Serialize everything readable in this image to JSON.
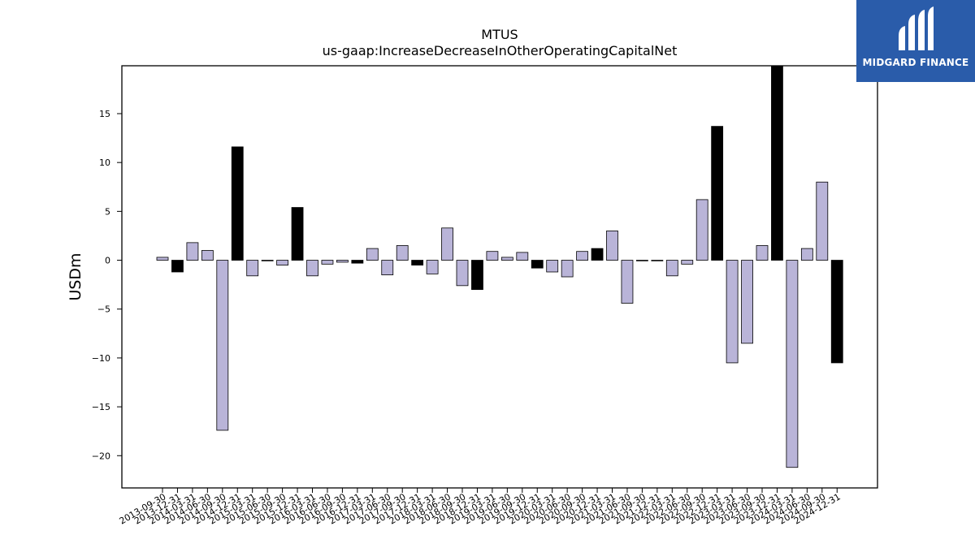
{
  "logo": {
    "text": "MIDGARD FINANCE"
  },
  "chart_data": {
    "type": "bar",
    "title": "MTUS",
    "subtitle": "us-gaap:IncreaseDecreaseInOtherOperatingCapitalNet",
    "xlabel": "",
    "ylabel": "USDm",
    "ylim": [
      -23.3,
      19.9
    ],
    "yticks": [
      -20,
      -15,
      -10,
      -5,
      0,
      5,
      10,
      15
    ],
    "ytick_labels": [
      "−20",
      "−15",
      "−10",
      "−5",
      "0",
      "5",
      "10",
      "15"
    ],
    "grid": false,
    "colors": {
      "quarterly": "#b9b4d8",
      "annual": "#000000"
    },
    "categories": [
      "2013-09-30",
      "2013-12-31",
      "2014-03-31",
      "2014-06-30",
      "2014-09-30",
      "2014-12-31",
      "2015-03-31",
      "2015-06-30",
      "2015-09-30",
      "2015-12-31",
      "2016-03-31",
      "2016-06-30",
      "2016-09-30",
      "2016-12-31",
      "2017-03-31",
      "2017-06-30",
      "2017-09-30",
      "2017-12-31",
      "2018-03-31",
      "2018-06-30",
      "2018-09-30",
      "2018-12-31",
      "2019-03-31",
      "2019-06-30",
      "2019-09-30",
      "2019-12-31",
      "2020-03-31",
      "2020-06-30",
      "2020-09-30",
      "2020-12-31",
      "2021-03-31",
      "2021-06-30",
      "2021-09-30",
      "2021-12-31",
      "2022-03-31",
      "2022-06-30",
      "2022-09-30",
      "2022-12-31",
      "2023-03-31",
      "2023-06-30",
      "2023-09-30",
      "2023-12-31",
      "2024-03-31",
      "2024-06-30",
      "2024-09-30",
      "2024-12-31"
    ],
    "values": [
      0.3,
      -1.2,
      1.8,
      1.0,
      -17.4,
      11.6,
      -1.6,
      0.0,
      -0.5,
      5.4,
      -1.6,
      -0.4,
      -0.2,
      -0.3,
      1.2,
      -1.5,
      1.5,
      -0.5,
      -1.4,
      3.3,
      -2.6,
      -3.0,
      0.9,
      0.3,
      0.8,
      -0.8,
      -1.2,
      -1.7,
      0.9,
      1.2,
      3.0,
      -4.4,
      0.0,
      0.0,
      -1.6,
      -0.4,
      6.2,
      13.7,
      -10.5,
      -8.5,
      1.5,
      19.9,
      -21.2,
      1.2,
      8.0,
      -10.5
    ],
    "annual": [
      false,
      true,
      false,
      false,
      false,
      true,
      false,
      false,
      false,
      true,
      false,
      false,
      false,
      true,
      false,
      false,
      false,
      true,
      false,
      false,
      false,
      true,
      false,
      false,
      false,
      true,
      false,
      false,
      false,
      true,
      false,
      false,
      false,
      true,
      false,
      false,
      false,
      true,
      false,
      false,
      false,
      true,
      false,
      false,
      false,
      true
    ]
  }
}
